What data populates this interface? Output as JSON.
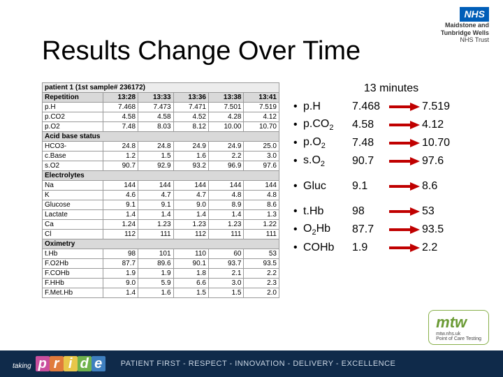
{
  "header": {
    "nhs_label": "NHS",
    "trust_line1": "Maidstone and",
    "trust_line2": "Tunbridge Wells",
    "trust_sub": "NHS Trust"
  },
  "title": "Results Change Over Time",
  "table": {
    "patient_row": "patient 1 (1st sample# 236172)",
    "header": [
      "Repetition",
      "13:28",
      "13:33",
      "13:36",
      "13:38",
      "13:41"
    ],
    "sections": [
      {
        "rows": [
          [
            "p.H",
            "7.468",
            "7.473",
            "7.471",
            "7.501",
            "7.519"
          ],
          [
            "p.CO2",
            "4.58",
            "4.58",
            "4.52",
            "4.28",
            "4.12"
          ],
          [
            "p.O2",
            "7.48",
            "8.03",
            "8.12",
            "10.00",
            "10.70"
          ]
        ]
      },
      {
        "title": "Acid base status",
        "rows": [
          [
            "HCO3-",
            "24.8",
            "24.8",
            "24.9",
            "24.9",
            "25.0"
          ],
          [
            "c.Base",
            "1.2",
            "1.5",
            "1.6",
            "2.2",
            "3.0"
          ],
          [
            "s.O2",
            "90.7",
            "92.9",
            "93.2",
            "96.9",
            "97.6"
          ]
        ]
      },
      {
        "title": "Electrolytes",
        "rows": [
          [
            "Na",
            "144",
            "144",
            "144",
            "144",
            "144"
          ],
          [
            "K",
            "4.6",
            "4.7",
            "4.7",
            "4.8",
            "4.8"
          ],
          [
            "Glucose",
            "9.1",
            "9.1",
            "9.0",
            "8.9",
            "8.6"
          ],
          [
            "Lactate",
            "1.4",
            "1.4",
            "1.4",
            "1.4",
            "1.3"
          ],
          [
            "Ca",
            "1.24",
            "1.23",
            "1.23",
            "1.23",
            "1.22"
          ],
          [
            "Cl",
            "112",
            "111",
            "112",
            "111",
            "111"
          ]
        ]
      },
      {
        "title": "Oximetry",
        "rows": [
          [
            "t.Hb",
            "98",
            "101",
            "110",
            "60",
            "53"
          ],
          [
            "F.O2Hb",
            "87.7",
            "89.6",
            "90.1",
            "93.7",
            "93.5"
          ],
          [
            "F.COHb",
            "1.9",
            "1.9",
            "1.8",
            "2.1",
            "2.2"
          ],
          [
            "F.HHb",
            "9.0",
            "5.9",
            "6.6",
            "3.0",
            "2.3"
          ],
          [
            "F.Met.Hb",
            "1.4",
            "1.6",
            "1.5",
            "1.5",
            "2.0"
          ]
        ]
      }
    ]
  },
  "summary": {
    "minutes_label": "13 minutes",
    "arrow_color": "#c00000",
    "groups": [
      {
        "rows": [
          {
            "param": "p.H",
            "sub": "",
            "v1": "7.468",
            "v2": "7.519"
          },
          {
            "param": "p.CO",
            "sub": "2",
            "v1": "4.58",
            "v2": "4.12"
          },
          {
            "param": "p.O",
            "sub": "2",
            "v1": "7.48",
            "v2": "10.70"
          },
          {
            "param": "s.O",
            "sub": "2",
            "v1": "90.7",
            "v2": "97.6"
          }
        ]
      },
      {
        "rows": [
          {
            "param": "Gluc",
            "sub": "",
            "v1": "9.1",
            "v2": "8.6"
          }
        ]
      },
      {
        "rows": [
          {
            "param": "t.Hb",
            "sub": "",
            "v1": "98",
            "v2": "53"
          },
          {
            "param": "O",
            "sub": "2",
            "param2": "Hb",
            "v1": "87.7",
            "v2": "93.5"
          },
          {
            "param": "COHb",
            "sub": "",
            "v1": "1.9",
            "v2": "2.2"
          }
        ]
      }
    ]
  },
  "footer": {
    "mtw": "mtw",
    "mtw_url": "mtw.nhs.uk",
    "mtw_sub": "Point of Care Testing",
    "taking": "taking",
    "pride_letters": [
      "p",
      "r",
      "i",
      "d",
      "e"
    ],
    "pride_colors": [
      "#c94f9e",
      "#e07b3c",
      "#e8c64a",
      "#6fb24c",
      "#3f7fbf"
    ],
    "values": "PATIENT FIRST - RESPECT - INNOVATION - DELIVERY - EXCELLENCE"
  }
}
